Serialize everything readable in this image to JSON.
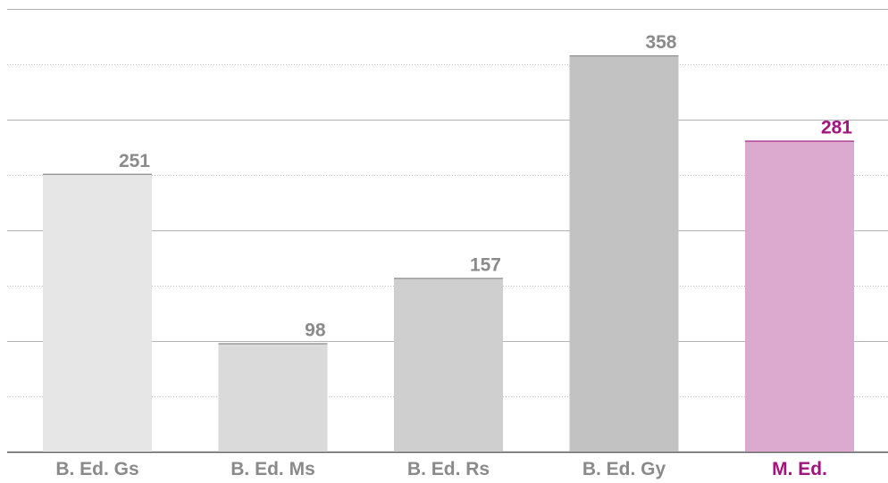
{
  "chart_data": {
    "type": "bar",
    "categories": [
      "B. Ed. Gs",
      "B. Ed. Ms",
      "B. Ed. Rs",
      "B. Ed. Gy",
      "M. Ed."
    ],
    "values": [
      251,
      98,
      157,
      358,
      281
    ],
    "bar_colors": [
      "#e6e6e6",
      "#dadada",
      "#cfcfcf",
      "#c2c2c2",
      "#dcaacf"
    ],
    "label_colors": [
      "#8a8a8a",
      "#8a8a8a",
      "#8a8a8a",
      "#8a8a8a",
      "#a3137e"
    ],
    "cap_colors": [
      "#8a8a8a",
      "#8a8a8a",
      "#8a8a8a",
      "#8a8a8a",
      "#a3137e"
    ],
    "ylim": [
      0,
      400
    ],
    "grid": true,
    "title": "",
    "xlabel": "",
    "ylabel": ""
  }
}
